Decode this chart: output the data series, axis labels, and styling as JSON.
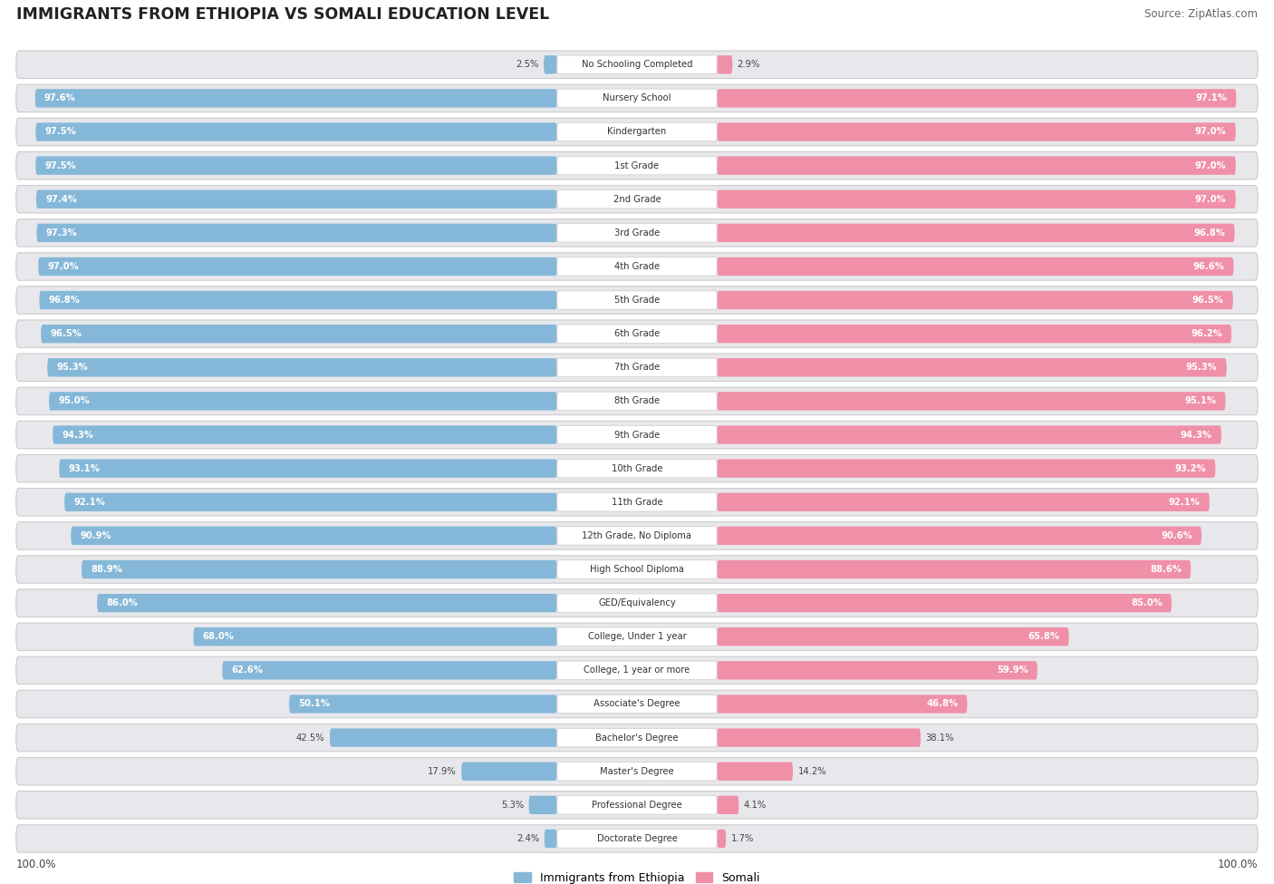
{
  "title": "IMMIGRANTS FROM ETHIOPIA VS SOMALI EDUCATION LEVEL",
  "source": "Source: ZipAtlas.com",
  "categories": [
    "No Schooling Completed",
    "Nursery School",
    "Kindergarten",
    "1st Grade",
    "2nd Grade",
    "3rd Grade",
    "4th Grade",
    "5th Grade",
    "6th Grade",
    "7th Grade",
    "8th Grade",
    "9th Grade",
    "10th Grade",
    "11th Grade",
    "12th Grade, No Diploma",
    "High School Diploma",
    "GED/Equivalency",
    "College, Under 1 year",
    "College, 1 year or more",
    "Associate's Degree",
    "Bachelor's Degree",
    "Master's Degree",
    "Professional Degree",
    "Doctorate Degree"
  ],
  "ethiopia_values": [
    2.5,
    97.6,
    97.5,
    97.5,
    97.4,
    97.3,
    97.0,
    96.8,
    96.5,
    95.3,
    95.0,
    94.3,
    93.1,
    92.1,
    90.9,
    88.9,
    86.0,
    68.0,
    62.6,
    50.1,
    42.5,
    17.9,
    5.3,
    2.4
  ],
  "somali_values": [
    2.9,
    97.1,
    97.0,
    97.0,
    97.0,
    96.8,
    96.6,
    96.5,
    96.2,
    95.3,
    95.1,
    94.3,
    93.2,
    92.1,
    90.6,
    88.6,
    85.0,
    65.8,
    59.9,
    46.8,
    38.1,
    14.2,
    4.1,
    1.7
  ],
  "ethiopia_color": "#85b8d8",
  "somali_color": "#f090a8",
  "row_bg_color": "#e8e8ec",
  "row_bg_outer": "#d8d8de",
  "label_bg": "#ffffff",
  "title_color": "#222222",
  "source_color": "#666666",
  "value_color_inside": "#ffffff",
  "value_color_outside": "#555555",
  "inside_threshold": 45.0
}
